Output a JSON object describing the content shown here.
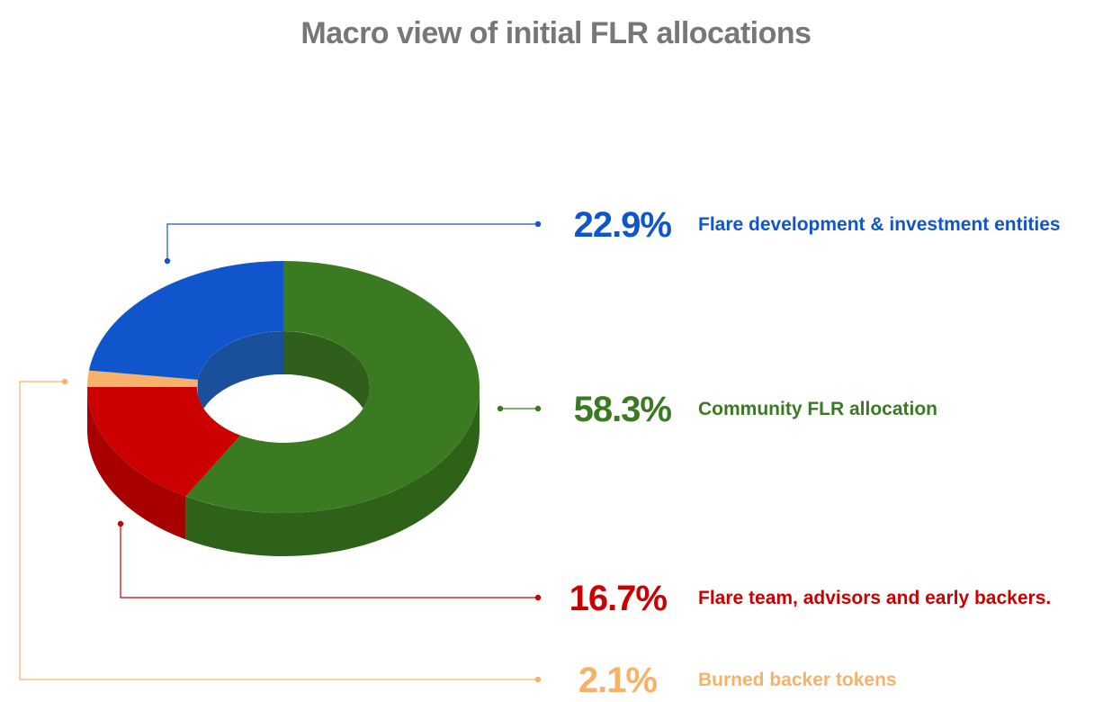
{
  "chart_data": {
    "type": "pie",
    "style": "3d-donut",
    "title": "Macro view of initial FLR allocations",
    "slices": [
      {
        "label": "Community FLR allocation",
        "value": 58.3,
        "display": "58.3%",
        "color": "#3a7a20",
        "side_color": "#2e6218",
        "inner_color": "#2f5f1a"
      },
      {
        "label": "Flare team, advisors and early backers.",
        "value": 16.7,
        "display": "16.7%",
        "color": "#cc0000",
        "side_color": "#a80000",
        "inner_color": "#a00000"
      },
      {
        "label": "Burned backer tokens",
        "value": 2.1,
        "display": "2.1%",
        "color": "#f6b26b",
        "side_color": "#e09a52",
        "inner_color": "#d99050"
      },
      {
        "label": "Flare development & investment entities",
        "value": 22.9,
        "display": "22.9%",
        "color": "#1155cc",
        "side_color": "#0e45a8",
        "inner_color": "#1a4f9c"
      }
    ],
    "legend": "callouts-right"
  }
}
